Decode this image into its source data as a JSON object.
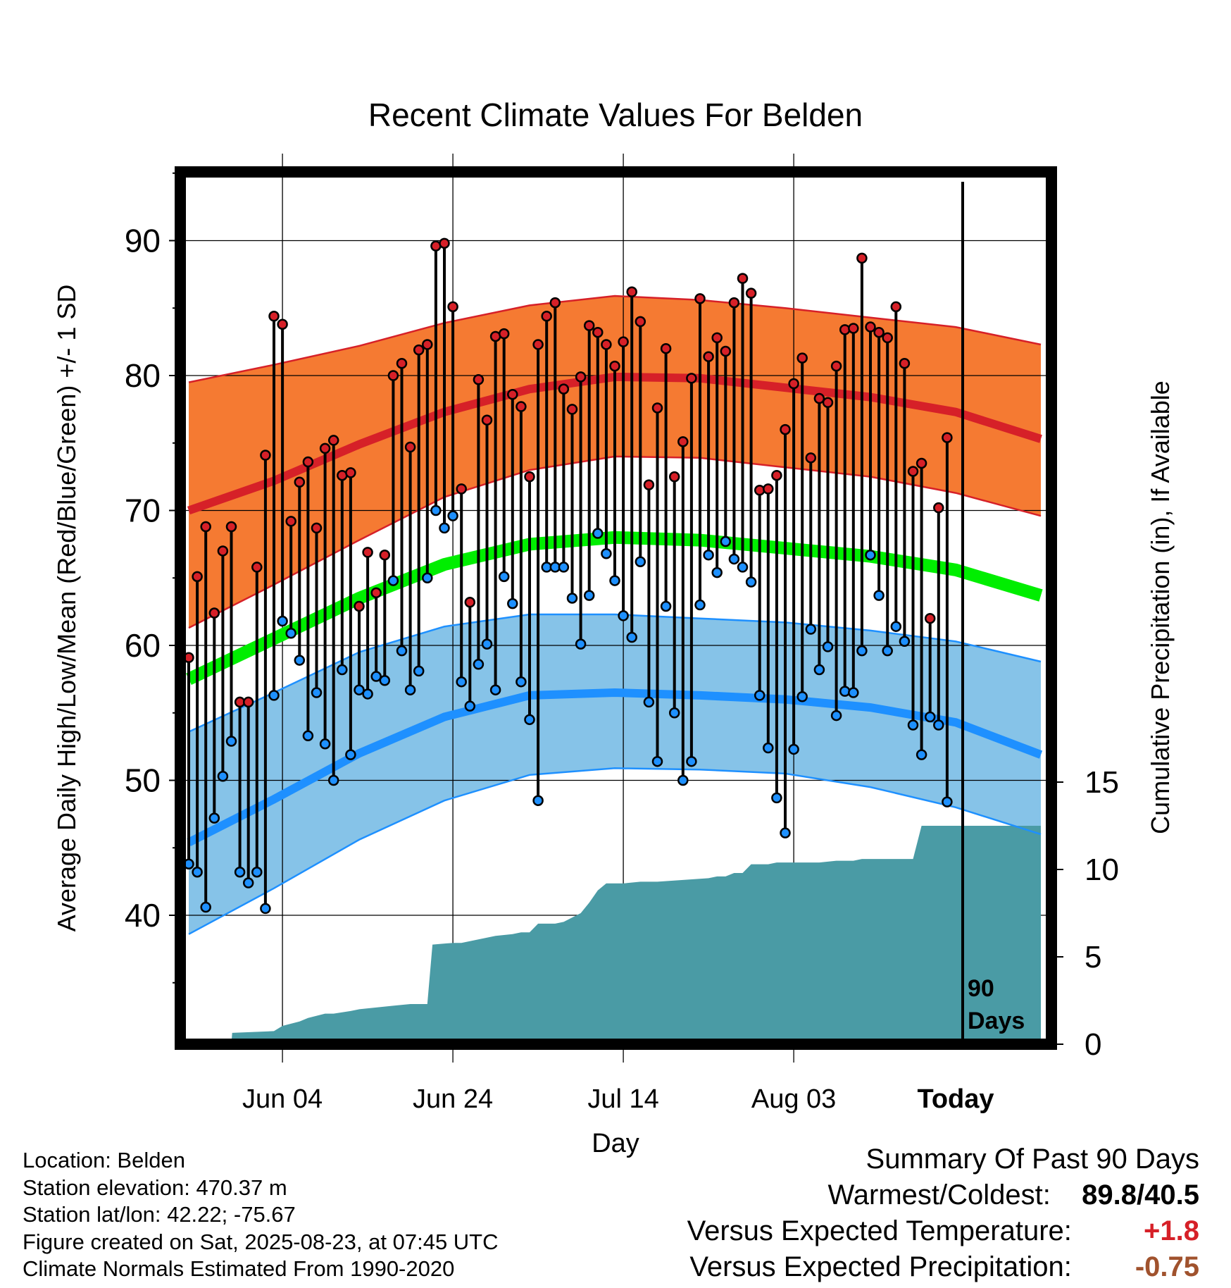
{
  "chart_data": {
    "type": "line",
    "title": "Recent Climate Values For Belden",
    "xlabel": "Day",
    "ylabel": "Average Daily High/Low/Mean (Red/Blue/Green) +/- 1 SD",
    "y2label": "Cumulative Precipitation (in), If Available",
    "x_tick_labels": [
      "Jun 04",
      "Jun 24",
      "Jul 14",
      "Aug 03",
      "Today"
    ],
    "y_ticks": [
      40,
      50,
      60,
      70,
      80,
      90
    ],
    "y2_ticks": [
      0,
      5,
      10,
      15
    ],
    "window_label": "90 Days",
    "grid": true,
    "colors": {
      "high_band": "#f57a32",
      "high_mean": "#d62028",
      "low_band": "#86c3e8",
      "low_mean": "#1e90ff",
      "mean_line": "#00ee00",
      "precip": "#4a9ba5",
      "high_dot": "#d62028",
      "low_dot": "#1e90ff"
    },
    "normals": {
      "day": [
        0,
        10,
        20,
        30,
        40,
        50,
        60,
        70,
        80,
        90,
        100
      ],
      "high_upper": [
        79.5,
        80.8,
        82.2,
        83.9,
        85.2,
        85.9,
        85.6,
        85.0,
        84.3,
        83.6,
        82.3
      ],
      "high_mean": [
        70.0,
        72.2,
        74.9,
        77.3,
        79.0,
        79.9,
        79.8,
        79.1,
        78.4,
        77.3,
        75.3
      ],
      "high_lower": [
        61.3,
        64.5,
        67.8,
        71.0,
        73.0,
        74.0,
        73.9,
        73.2,
        72.5,
        71.3,
        69.6
      ],
      "mean": [
        57.5,
        60.5,
        63.5,
        66.0,
        67.5,
        68.0,
        67.8,
        67.2,
        66.6,
        65.6,
        63.7
      ],
      "low_upper": [
        53.6,
        56.5,
        59.5,
        61.4,
        62.3,
        62.3,
        62.0,
        61.7,
        61.1,
        60.3,
        58.8
      ],
      "low_mean": [
        45.4,
        48.6,
        52.0,
        54.7,
        56.3,
        56.5,
        56.3,
        56.0,
        55.4,
        54.3,
        51.9
      ],
      "low_lower": [
        38.6,
        42.0,
        45.6,
        48.5,
        50.4,
        50.9,
        50.8,
        50.5,
        49.5,
        48.0,
        46.0
      ]
    },
    "series": [
      {
        "name": "High",
        "values": [
          59.1,
          65.1,
          68.8,
          62.4,
          67.0,
          68.8,
          55.8,
          55.8,
          65.8,
          74.1,
          84.4,
          83.8,
          69.2,
          72.1,
          73.6,
          68.7,
          74.6,
          75.2,
          72.6,
          72.8,
          62.9,
          66.9,
          63.9,
          66.7,
          80.0,
          80.9,
          74.7,
          81.9,
          82.3,
          89.6,
          89.8,
          85.1,
          71.6,
          63.2,
          79.7,
          76.7,
          82.9,
          83.1,
          78.6,
          77.7,
          72.5,
          82.3,
          84.4,
          85.4,
          79.0,
          77.5,
          79.9,
          83.7,
          83.2,
          82.3,
          80.7,
          82.5,
          86.2,
          84.0,
          71.9,
          77.6,
          82.0,
          72.5,
          75.1,
          79.8,
          85.7,
          81.4,
          82.8,
          81.8,
          85.4,
          87.2,
          86.1,
          71.5,
          71.6,
          72.6,
          76.0,
          79.4,
          81.3,
          73.9,
          78.3,
          78.0,
          80.7,
          83.4,
          83.5,
          88.7,
          83.6,
          83.2,
          82.8,
          85.1,
          80.9,
          72.9,
          73.5,
          62.0,
          70.2,
          75.4
        ]
      },
      {
        "name": "Low",
        "values": [
          43.8,
          43.2,
          40.6,
          47.2,
          50.3,
          52.9,
          43.2,
          42.4,
          43.2,
          40.5,
          56.3,
          61.8,
          60.9,
          58.9,
          53.3,
          56.5,
          52.7,
          50.0,
          58.2,
          51.9,
          56.7,
          56.4,
          57.7,
          57.4,
          64.8,
          59.6,
          56.7,
          58.1,
          65.0,
          70.0,
          68.7,
          69.6,
          57.3,
          55.5,
          58.6,
          60.1,
          56.7,
          65.1,
          63.1,
          57.3,
          54.5,
          48.5,
          65.8,
          65.8,
          65.8,
          63.5,
          60.1,
          63.7,
          68.3,
          66.8,
          64.8,
          62.2,
          60.6,
          66.2,
          55.8,
          51.4,
          62.9,
          55.0,
          50.0,
          51.4,
          63.0,
          66.7,
          65.4,
          67.7,
          66.4,
          65.8,
          64.7,
          56.3,
          52.4,
          48.7,
          46.1,
          52.3,
          56.2,
          61.2,
          58.2,
          59.9,
          54.8,
          56.6,
          56.5,
          59.6,
          66.7,
          63.7,
          59.6,
          61.4,
          60.3,
          54.1,
          51.9,
          54.7,
          54.1,
          48.4
        ]
      }
    ],
    "precip": {
      "day": [
        0,
        5,
        5.1,
        10,
        11,
        13,
        14,
        16,
        17,
        19,
        20,
        22,
        24,
        26,
        27,
        28,
        28.6,
        31,
        32,
        34,
        36,
        38,
        39,
        40,
        41,
        43,
        44,
        46,
        47,
        48,
        49,
        50,
        51,
        53,
        55,
        58,
        61,
        62,
        63,
        64,
        65,
        66,
        67,
        68,
        69,
        72,
        74,
        76,
        77,
        78,
        79,
        80,
        82,
        85,
        86,
        87,
        87.5,
        90,
        93,
        100
      ],
      "inches": [
        0,
        0,
        0.65,
        0.75,
        1.05,
        1.3,
        1.5,
        1.75,
        1.75,
        1.9,
        2.0,
        2.1,
        2.2,
        2.3,
        2.3,
        2.3,
        5.7,
        5.8,
        5.8,
        6.0,
        6.2,
        6.3,
        6.4,
        6.4,
        6.9,
        6.9,
        7.0,
        7.5,
        8.1,
        8.8,
        9.2,
        9.2,
        9.2,
        9.3,
        9.3,
        9.4,
        9.5,
        9.6,
        9.6,
        9.8,
        9.8,
        10.3,
        10.3,
        10.3,
        10.4,
        10.4,
        10.4,
        10.5,
        10.5,
        10.5,
        10.6,
        10.6,
        10.6,
        10.6,
        12.5,
        12.5,
        12.5,
        12.5,
        12.5,
        12.5
      ]
    }
  },
  "location": {
    "name_line": "Location: Belden",
    "elevation_line": "Station elevation: 470.37 m",
    "latlon_line": "Station lat/lon: 42.22; -75.67",
    "created_line": "Figure created on Sat, 2025-08-23, at 07:45 UTC",
    "normals_line": "Climate Normals Estimated From 1990-2020"
  },
  "summary": {
    "heading": "Summary Of Past 90 Days",
    "warm_cold_label": "Warmest/Coldest:",
    "warmest": "89.8",
    "slash": "/",
    "coldest": "40.5",
    "temp_label": "Versus Expected Temperature:",
    "temp_value": "+1.8",
    "temp_color": "#d62028",
    "precip_label": "Versus Expected Precipitation:",
    "precip_value": "-0.75",
    "precip_color": "#a0522d"
  }
}
